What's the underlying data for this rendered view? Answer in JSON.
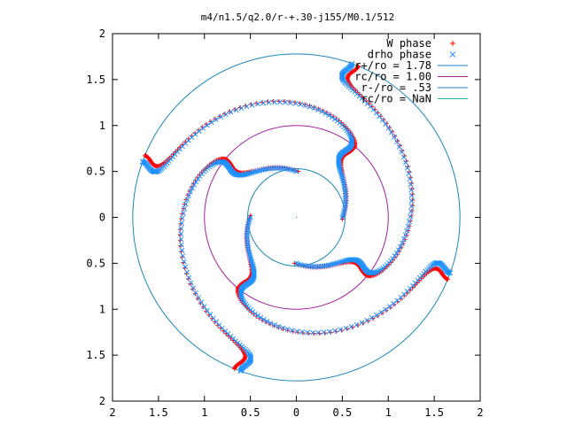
{
  "chart_data": {
    "type": "scatter",
    "title": "m4/n1.5/q2.0/r-+.30-j155/M0.1/512",
    "xlim": [
      -2,
      2
    ],
    "ylim": [
      -2,
      2
    ],
    "x_ticks": [
      {
        "value": -2,
        "label": "2"
      },
      {
        "value": -1.5,
        "label": "1.5"
      },
      {
        "value": -1,
        "label": "1"
      },
      {
        "value": -0.5,
        "label": "0.5"
      },
      {
        "value": 0,
        "label": "0"
      },
      {
        "value": 0.5,
        "label": "0.5"
      },
      {
        "value": 1,
        "label": "1"
      },
      {
        "value": 1.5,
        "label": "1.5"
      },
      {
        "value": 2,
        "label": "2"
      }
    ],
    "y_ticks": [
      {
        "value": 2,
        "label": "2"
      },
      {
        "value": 1.5,
        "label": "1.5"
      },
      {
        "value": 1,
        "label": "1"
      },
      {
        "value": 0.5,
        "label": "0.5"
      },
      {
        "value": 0,
        "label": "0"
      },
      {
        "value": -0.5,
        "label": "0.5"
      },
      {
        "value": -1,
        "label": "1"
      },
      {
        "value": -1.5,
        "label": "1.5"
      },
      {
        "value": -2,
        "label": "2"
      }
    ],
    "grid": false,
    "legend_position": "top-right",
    "series": [
      {
        "name": "W phase",
        "marker": "+",
        "color": "#ff0000",
        "arm_count": 4,
        "arm_r_range": [
          0.5,
          1.78
        ]
      },
      {
        "name": "drho phase",
        "marker": "x",
        "color": "#1e90ff",
        "arm_count": 4,
        "arm_r_range": [
          0.5,
          1.78
        ]
      }
    ],
    "circles": [
      {
        "name": "r+/ro = 1.78",
        "radius": 1.78,
        "color": "#1a86b8"
      },
      {
        "name": "rc/ro = 1.00",
        "radius": 1.0,
        "color": "#a020a0"
      },
      {
        "name": "r-/ro = .53",
        "radius": 0.53,
        "color": "#1a86b8"
      },
      {
        "name": "rc/ro = NaN",
        "radius": null,
        "color": "#20b2aa"
      }
    ]
  }
}
